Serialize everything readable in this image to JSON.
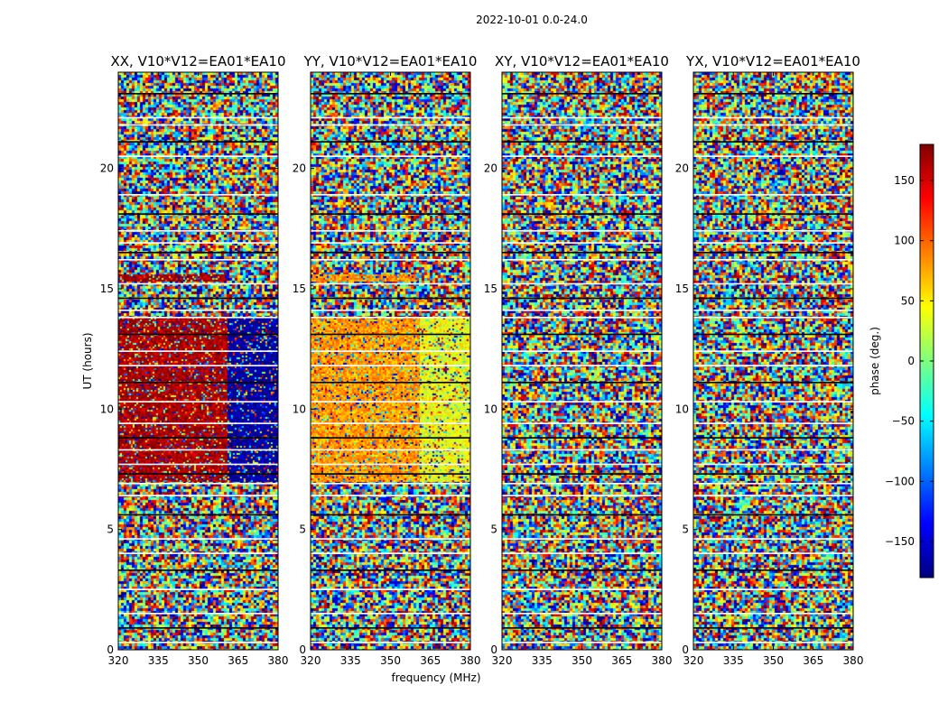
{
  "figure": {
    "suptitle": "2022-10-01 0.0-24.0",
    "xlabel": "frequency (MHz)",
    "ylabel": "UT (hours)"
  },
  "colorbar": {
    "label": "phase (deg.)",
    "range": [
      -180,
      180
    ],
    "ticks": [
      -150,
      -100,
      -50,
      0,
      50,
      100,
      150
    ],
    "tick_labels": [
      "−150",
      "−100",
      "−50",
      "0",
      "50",
      "100",
      "150"
    ],
    "colormap": "jet",
    "colors": [
      "#00007f",
      "#0000ff",
      "#007fff",
      "#00ffff",
      "#7fff7f",
      "#ffff00",
      "#ff7f00",
      "#ff0000",
      "#7f0000"
    ]
  },
  "chart_data": [
    {
      "type": "heatmap",
      "title": "XX, V10*V12=EA01*EA10",
      "x_range": [
        320,
        380
      ],
      "y_range": [
        0,
        24
      ],
      "x_ticks": [
        320,
        335,
        350,
        365,
        380
      ],
      "y_ticks": [
        0,
        5,
        10,
        15,
        20
      ],
      "flagged_ut_hours": [
        0.3,
        0.9,
        1.5,
        2.5,
        3.3,
        4.0,
        4.6,
        5.6,
        6.4,
        6.9,
        7.3,
        7.7,
        8.3,
        8.8,
        9.4,
        10.3,
        11.1,
        11.8,
        12.4,
        13.1,
        13.8,
        14.1,
        14.6,
        15.2,
        16.2,
        16.5,
        16.9,
        17.4,
        18.1,
        18.9,
        20.5,
        21.1,
        21.8,
        22.1,
        23.1
      ],
      "features": [
        {
          "ut_start": 7.0,
          "ut_end": 13.8,
          "freq_start": 320,
          "freq_end": 361,
          "phase": 165
        },
        {
          "ut_start": 7.0,
          "ut_end": 13.8,
          "freq_start": 361,
          "freq_end": 380,
          "phase": -170
        },
        {
          "ut_start": 15.3,
          "ut_end": 15.6,
          "freq_start": 320,
          "freq_end": 360,
          "phase": 170
        }
      ]
    },
    {
      "type": "heatmap",
      "title": "YY, V10*V12=EA01*EA10",
      "x_range": [
        320,
        380
      ],
      "y_range": [
        0,
        24
      ],
      "x_ticks": [
        320,
        335,
        350,
        365,
        380
      ],
      "y_ticks": [
        0,
        5,
        10,
        15,
        20
      ],
      "flagged_ut_hours": [
        0.3,
        0.9,
        1.5,
        2.5,
        3.3,
        4.0,
        4.6,
        5.6,
        6.4,
        6.9,
        7.3,
        7.7,
        8.3,
        8.8,
        9.4,
        10.3,
        11.1,
        11.8,
        12.4,
        13.1,
        13.8,
        14.1,
        14.6,
        15.2,
        16.2,
        16.5,
        16.9,
        17.4,
        18.1,
        18.9,
        20.5,
        21.1,
        21.8,
        22.1,
        23.1
      ],
      "features": [
        {
          "ut_start": 7.0,
          "ut_end": 13.8,
          "freq_start": 320,
          "freq_end": 361,
          "phase": 80
        },
        {
          "ut_start": 7.0,
          "ut_end": 13.8,
          "freq_start": 361,
          "freq_end": 380,
          "phase": 40
        },
        {
          "ut_start": 15.3,
          "ut_end": 15.6,
          "freq_start": 320,
          "freq_end": 360,
          "phase": 85
        }
      ]
    },
    {
      "type": "heatmap",
      "title": "XY, V10*V12=EA01*EA10",
      "x_range": [
        320,
        380
      ],
      "y_range": [
        0,
        24
      ],
      "x_ticks": [
        320,
        335,
        350,
        365,
        380
      ],
      "y_ticks": [
        0,
        5,
        10,
        15,
        20
      ],
      "flagged_ut_hours": [
        0.3,
        0.9,
        1.5,
        2.5,
        3.3,
        4.0,
        4.6,
        5.6,
        6.4,
        6.9,
        7.3,
        7.7,
        8.3,
        8.8,
        9.4,
        10.3,
        11.1,
        11.8,
        12.4,
        13.1,
        13.8,
        14.1,
        14.6,
        15.2,
        16.2,
        16.5,
        16.9,
        17.4,
        18.1,
        18.9,
        20.5,
        21.1,
        21.8,
        22.1,
        23.1
      ],
      "features": []
    },
    {
      "type": "heatmap",
      "title": "YX, V10*V12=EA01*EA10",
      "x_range": [
        320,
        380
      ],
      "y_range": [
        0,
        24
      ],
      "x_ticks": [
        320,
        335,
        350,
        365,
        380
      ],
      "y_ticks": [
        0,
        5,
        10,
        15,
        20
      ],
      "flagged_ut_hours": [
        0.3,
        0.9,
        1.5,
        2.5,
        3.3,
        4.0,
        4.6,
        5.6,
        6.4,
        6.9,
        7.3,
        7.7,
        8.3,
        8.8,
        9.4,
        10.3,
        11.1,
        11.8,
        12.4,
        13.1,
        13.8,
        14.1,
        14.6,
        15.2,
        16.2,
        16.5,
        16.9,
        17.4,
        18.1,
        18.9,
        20.5,
        21.1,
        21.8,
        22.1,
        23.1
      ],
      "features": []
    }
  ]
}
